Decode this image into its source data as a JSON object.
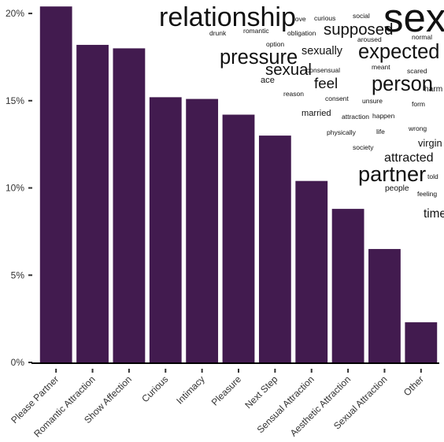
{
  "chart_data": {
    "type": "bar",
    "categories": [
      "Please Partner",
      "Romantic Attraction",
      "Show Affection",
      "Curious",
      "Intimacy",
      "Pleasure",
      "Next Step",
      "Sensual Attraction",
      "Aesthetic Attraction",
      "Sexual Attraction",
      "Other"
    ],
    "values": [
      20.4,
      18.2,
      18.0,
      15.2,
      15.1,
      14.2,
      13.0,
      10.4,
      8.8,
      6.5,
      2.3
    ],
    "ylim": [
      0,
      20.5
    ],
    "yticks": [
      0,
      5,
      10,
      15,
      20
    ],
    "ytick_labels": [
      "0%",
      "5%",
      "10%",
      "15%",
      "20%"
    ],
    "xlabel": "",
    "ylabel": "",
    "title": "",
    "bar_color": "#421b4f",
    "grid": false
  },
  "word_cloud": [
    {
      "text": "relationship",
      "weight": 4
    },
    {
      "text": "sex",
      "weight": 6
    },
    {
      "text": "love",
      "weight": 1
    },
    {
      "text": "curious",
      "weight": 1
    },
    {
      "text": "social",
      "weight": 1
    },
    {
      "text": "drunk",
      "weight": 1
    },
    {
      "text": "romantic",
      "weight": 1
    },
    {
      "text": "obligation",
      "weight": 1
    },
    {
      "text": "supposed",
      "weight": 2.4
    },
    {
      "text": "aroused",
      "weight": 1
    },
    {
      "text": "normal",
      "weight": 1
    },
    {
      "text": "option",
      "weight": 1
    },
    {
      "text": "pressure",
      "weight": 3
    },
    {
      "text": "sexually",
      "weight": 1.7
    },
    {
      "text": "expected",
      "weight": 3
    },
    {
      "text": "meant",
      "weight": 1
    },
    {
      "text": "sexual",
      "weight": 2.4
    },
    {
      "text": "consensual",
      "weight": 1
    },
    {
      "text": "scared",
      "weight": 1
    },
    {
      "text": "ace",
      "weight": 1.3
    },
    {
      "text": "feel",
      "weight": 2.2
    },
    {
      "text": "person",
      "weight": 3
    },
    {
      "text": "reason",
      "weight": 1
    },
    {
      "text": "harm",
      "weight": 1.2
    },
    {
      "text": "consent",
      "weight": 1
    },
    {
      "text": "unsure",
      "weight": 1
    },
    {
      "text": "form",
      "weight": 1
    },
    {
      "text": "married",
      "weight": 1.3
    },
    {
      "text": "attraction",
      "weight": 1
    },
    {
      "text": "happen",
      "weight": 1
    },
    {
      "text": "physically",
      "weight": 1
    },
    {
      "text": "life",
      "weight": 1
    },
    {
      "text": "wrong",
      "weight": 1
    },
    {
      "text": "society",
      "weight": 1
    },
    {
      "text": "virgin",
      "weight": 1.5
    },
    {
      "text": "attracted",
      "weight": 1.9
    },
    {
      "text": "partner",
      "weight": 3.2
    },
    {
      "text": "told",
      "weight": 1
    },
    {
      "text": "people",
      "weight": 1.2
    },
    {
      "text": "feeling",
      "weight": 1
    },
    {
      "text": "time",
      "weight": 1.8
    }
  ]
}
